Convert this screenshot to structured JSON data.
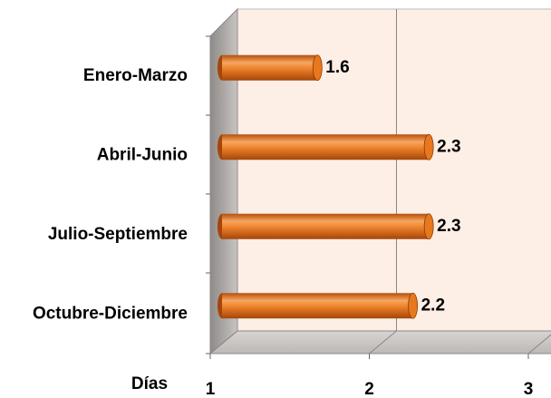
{
  "chart_data": {
    "type": "bar",
    "orientation": "horizontal",
    "categories": [
      "Enero-Marzo",
      "Abril-Junio",
      "Julio-Septiembre",
      "Octubre-Diciembre"
    ],
    "values": [
      1.6,
      2.3,
      2.3,
      2.2
    ],
    "color": "#e8781e",
    "x_label": "Días",
    "xlim": [
      1,
      3
    ],
    "xticks": [
      1,
      2,
      3
    ],
    "grid": true
  }
}
